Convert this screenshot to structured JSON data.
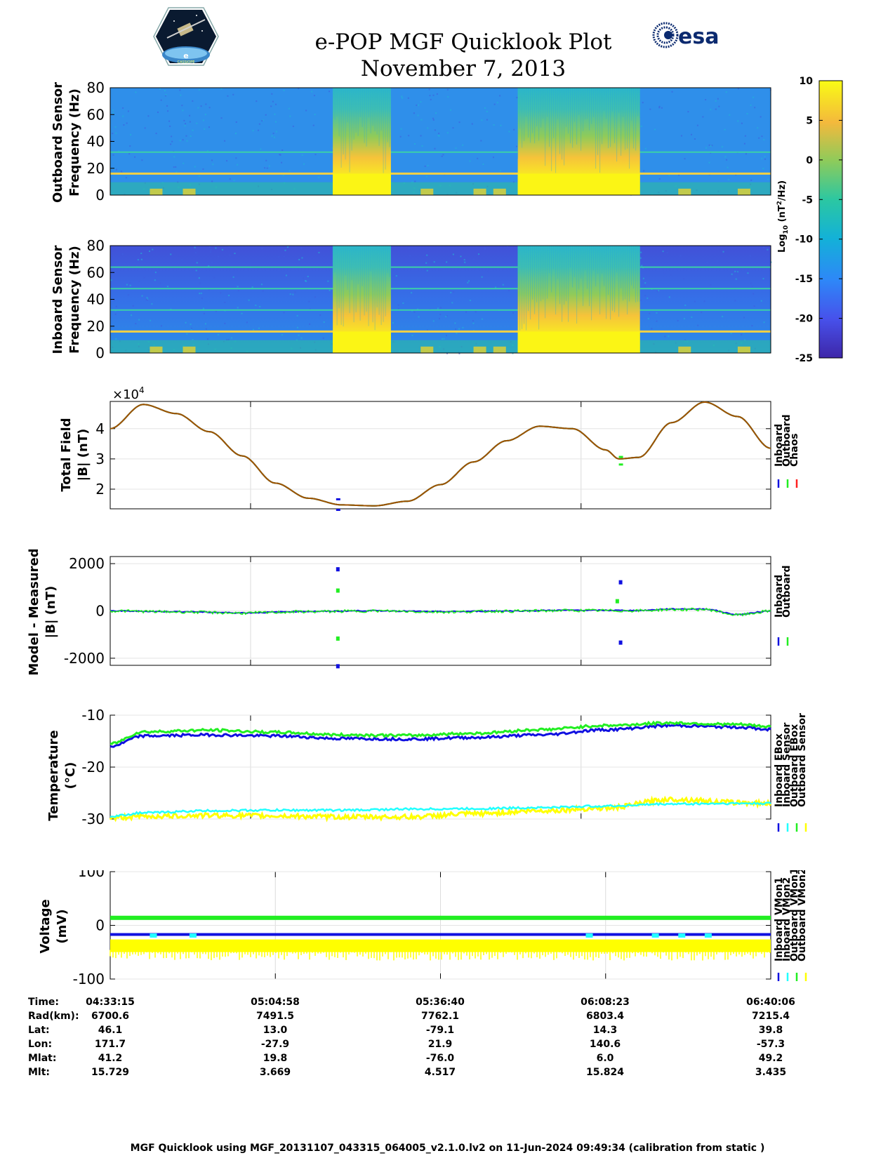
{
  "header": {
    "title_line1": "e-POP MGF Quicklook Plot",
    "title_line2": "November 7, 2013",
    "logo_left_text": "CASSIOPE",
    "logo_left_letter": "e",
    "logo_right_text": "esa"
  },
  "colors": {
    "blue": "#1010e0",
    "green": "#22ee22",
    "red": "#ff2020",
    "cyan": "#22ffff",
    "yellow": "#ffff00",
    "brown": "#a05000"
  },
  "chart_data": [
    {
      "type": "heatmap",
      "name": "outboard-spectrogram",
      "ylabel_line1": "Outboard Sensor",
      "ylabel_line2": "Frequency (Hz)",
      "ylim": [
        0,
        80
      ],
      "yticks": [
        "0",
        "20",
        "40",
        "60",
        "80"
      ],
      "high_power_intervals_frac": [
        [
          0.337,
          0.425
        ],
        [
          0.617,
          0.802
        ]
      ],
      "harmonic_lines_hz": [
        16,
        32
      ]
    },
    {
      "type": "heatmap",
      "name": "inboard-spectrogram",
      "ylabel_line1": "Inboard Sensor",
      "ylabel_line2": "Frequency (Hz)",
      "ylim": [
        0,
        80
      ],
      "yticks": [
        "0",
        "20",
        "40",
        "60",
        "80"
      ],
      "high_power_intervals_frac": [
        [
          0.337,
          0.425
        ],
        [
          0.617,
          0.802
        ]
      ],
      "harmonic_lines_hz": [
        16,
        32,
        48,
        64
      ]
    },
    {
      "type": "colorbar",
      "name": "power-colorbar",
      "label_prefix": "Log",
      "label_sub": "10",
      "label_units": "(nT",
      "label_sup": "2",
      "label_suffix": "/Hz)",
      "range": [
        -25,
        10
      ],
      "ticks": [
        "10",
        "5",
        "0",
        "-5",
        "-10",
        "-15",
        "-20",
        "-25"
      ]
    },
    {
      "type": "line",
      "name": "total-field",
      "ylabel_line1": "Total Field",
      "ylabel_line2": "|B| (nT)",
      "exponent_base": "×10",
      "exponent_power": "4",
      "ylim": [
        1.35,
        4.9
      ],
      "yticks": [
        "2",
        "3",
        "4"
      ],
      "ytick_values": [
        2,
        3,
        4
      ],
      "legend": [
        "Inboard",
        "Outboard",
        "Chaos"
      ],
      "x": [
        0,
        0.05,
        0.1,
        0.15,
        0.2,
        0.25,
        0.3,
        0.35,
        0.4,
        0.45,
        0.5,
        0.55,
        0.6,
        0.65,
        0.7,
        0.75,
        0.77,
        0.8,
        0.85,
        0.9,
        0.95,
        1.0
      ],
      "series": [
        {
          "name": "Chaos",
          "values": [
            4.0,
            4.8,
            4.5,
            3.9,
            3.1,
            2.2,
            1.7,
            1.48,
            1.45,
            1.6,
            2.15,
            2.9,
            3.6,
            4.08,
            4.0,
            3.3,
            3.0,
            3.05,
            4.2,
            4.88,
            4.4,
            3.35
          ]
        }
      ]
    },
    {
      "type": "line",
      "name": "model-minus-measured",
      "ylabel_line1": "Model - Measured",
      "ylabel_line2": "|B| (nT)",
      "ylim": [
        -2300,
        2300
      ],
      "yticks": [
        "-2000",
        "0",
        "2000"
      ],
      "ytick_values": [
        -2000,
        0,
        2000
      ],
      "legend": [
        "Inboard",
        "Outboard"
      ],
      "x": [
        0,
        0.1,
        0.2,
        0.3,
        0.4,
        0.5,
        0.6,
        0.7,
        0.8,
        0.85,
        0.9,
        0.95,
        1.0
      ],
      "series": [
        {
          "name": "Inboard",
          "values": [
            0,
            -30,
            -80,
            -20,
            10,
            -30,
            0,
            30,
            20,
            80,
            80,
            -150,
            0
          ]
        },
        {
          "name": "Outboard",
          "values": [
            0,
            -40,
            -90,
            -30,
            0,
            -40,
            -10,
            20,
            10,
            60,
            60,
            -170,
            -10
          ]
        }
      ]
    },
    {
      "type": "line",
      "name": "temperature",
      "ylabel_line1": "Temperature",
      "ylabel_line2": "(°C)",
      "ylim": [
        -30,
        -10
      ],
      "yticks": [
        "-10",
        "-20",
        "-30"
      ],
      "ytick_values": [
        -10,
        -20,
        -30
      ],
      "legend": [
        "Inboard EBox",
        "Inboard Sensor",
        "Outboard EBox",
        "Outboard Sensor"
      ],
      "x": [
        0,
        0.05,
        0.15,
        0.25,
        0.35,
        0.45,
        0.55,
        0.65,
        0.75,
        0.85,
        0.95,
        1.0
      ],
      "series": [
        {
          "name": "Inboard EBox",
          "values": [
            -16,
            -14,
            -13.8,
            -14,
            -14.5,
            -14.6,
            -14.3,
            -13.8,
            -12.8,
            -12,
            -12.3,
            -12.8
          ]
        },
        {
          "name": "Inboard Sensor",
          "values": [
            -29.5,
            -28.8,
            -28.4,
            -28.3,
            -28.3,
            -28.1,
            -28.0,
            -27.8,
            -27.5,
            -27.1,
            -27.0,
            -27.0
          ]
        },
        {
          "name": "Outboard EBox",
          "values": [
            -15.5,
            -13.2,
            -12.9,
            -13.3,
            -13.8,
            -13.9,
            -13.5,
            -12.8,
            -12.0,
            -11.5,
            -11.8,
            -12.2
          ]
        },
        {
          "name": "Outboard Sensor",
          "values": [
            -29.8,
            -29.5,
            -29.3,
            -29.4,
            -29.6,
            -29.6,
            -29.0,
            -28.4,
            -27.9,
            -26.2,
            -26.8,
            -27.0
          ]
        }
      ]
    },
    {
      "type": "line",
      "name": "voltage",
      "ylabel_line1": "Voltage",
      "ylabel_line2": "(mV)",
      "ylim": [
        -100,
        100
      ],
      "yticks": [
        "-100",
        "0",
        "100"
      ],
      "ytick_values": [
        -100,
        0,
        100
      ],
      "legend": [
        "Inboard VMon1",
        "Inboard VMon2",
        "Outboard VMon1",
        "Outboard VMon2"
      ],
      "x": [
        0,
        1
      ],
      "series": [
        {
          "name": "Inboard VMon1",
          "values": [
            -17,
            -17
          ]
        },
        {
          "name": "Inboard VMon2",
          "values": [
            -19,
            -19
          ]
        },
        {
          "name": "Outboard VMon1",
          "values": [
            14,
            14
          ]
        },
        {
          "name": "Outboard VMon2",
          "values": [
            -38,
            -38
          ]
        }
      ]
    }
  ],
  "ephemeris": {
    "row_labels": [
      "Time:",
      "Rad(km):",
      "Lat:",
      "Lon:",
      "Mlat:",
      "Mlt:"
    ],
    "columns": [
      [
        "04:33:15",
        "6700.6",
        "46.1",
        "171.7",
        "41.2",
        "15.729"
      ],
      [
        "05:04:58",
        "7491.5",
        "13.0",
        "-27.9",
        "19.8",
        "3.669"
      ],
      [
        "05:36:40",
        "7762.1",
        "-79.1",
        "21.9",
        "-76.0",
        "4.517"
      ],
      [
        "06:08:23",
        "6803.4",
        "14.3",
        "140.6",
        "6.0",
        "15.824"
      ],
      [
        "06:40:06",
        "7215.4",
        "39.8",
        "-57.3",
        "49.2",
        "3.435"
      ]
    ]
  },
  "footer": "MGF Quicklook using MGF_20131107_043315_064005_v2.1.0.lv2 on 11-Jun-2024 09:49:34 (calibration from static )"
}
